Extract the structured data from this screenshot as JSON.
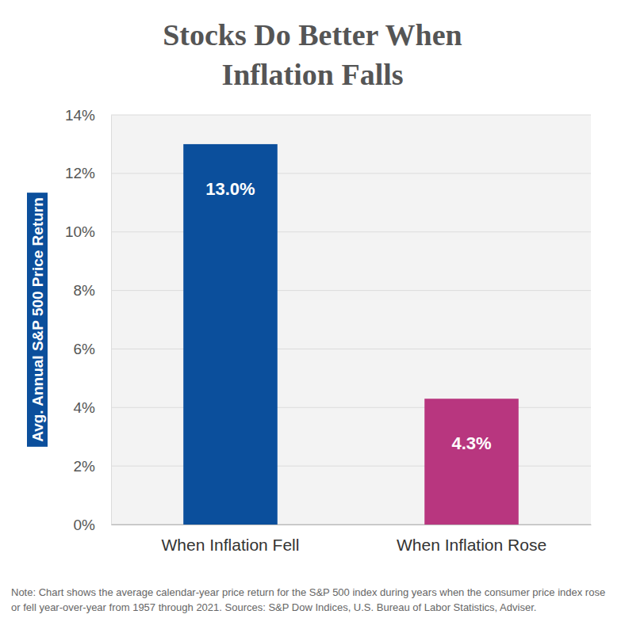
{
  "chart_data": {
    "type": "bar",
    "title": "Stocks Do Better When Inflation Falls",
    "y_label": "Avg. Annual S&P 500 Price Return",
    "categories": [
      "When Inflation Fell",
      "When Inflation Rose"
    ],
    "values": [
      13.0,
      4.3
    ],
    "value_labels": [
      "13.0%",
      "4.3%"
    ],
    "colors": [
      "#0b4f9c",
      "#b8367f"
    ],
    "ylim": [
      0,
      14
    ],
    "yticks": [
      {
        "value": 0,
        "label": "0%"
      },
      {
        "value": 2,
        "label": "2%"
      },
      {
        "value": 4,
        "label": "4%"
      },
      {
        "value": 6,
        "label": "6%"
      },
      {
        "value": 8,
        "label": "8%"
      },
      {
        "value": 10,
        "label": "10%"
      },
      {
        "value": 12,
        "label": "12%"
      },
      {
        "value": 14,
        "label": "14%"
      }
    ],
    "grid": true,
    "data_labels": true,
    "note": "Note: Chart shows the average calendar-year price return for the S&P 500 index during years when the consumer price index rose or fell year-over-year from 1957 through 2021. Sources: S&P Dow Indices, U.S. Bureau of Labor Statistics, Adviser."
  }
}
